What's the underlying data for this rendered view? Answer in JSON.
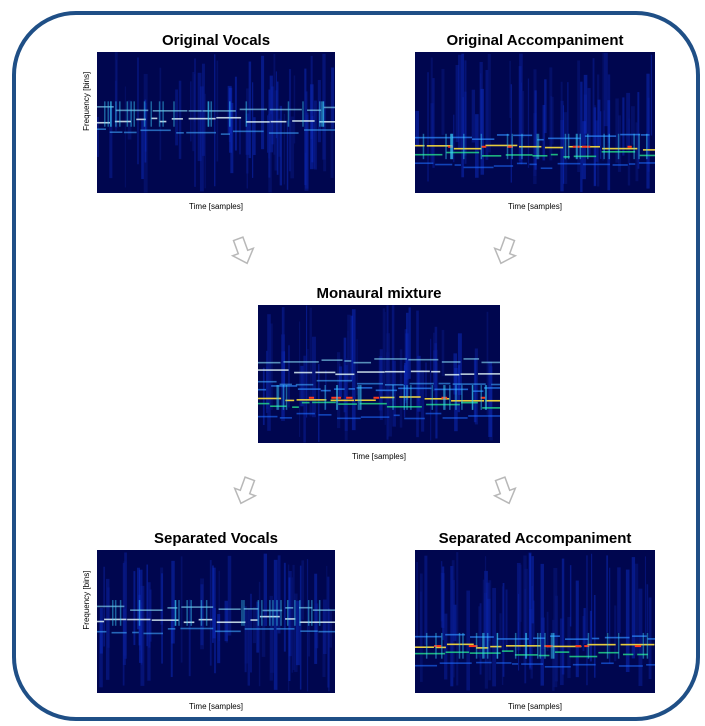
{
  "panels": [
    {
      "title": "Original Vocals",
      "xlabel": "Time [samples]",
      "ylabel": "Frequency [bins]"
    },
    {
      "title": "Original Accompaniment",
      "xlabel": "Time [samples]"
    },
    {
      "title": "Monaural mixture",
      "xlabel": "Time [samples]"
    },
    {
      "title": "Separated Vocals",
      "xlabel": "Time [samples]",
      "ylabel": "Frequency [bins]"
    },
    {
      "title": "Separated Accompaniment",
      "xlabel": "Time [samples]"
    }
  ]
}
